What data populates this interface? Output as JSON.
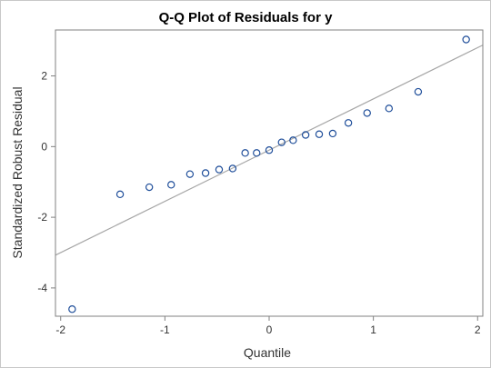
{
  "chart_data": {
    "type": "scatter",
    "title": "Q-Q Plot of Residuals for y",
    "xlabel": "Quantile",
    "ylabel": "Standardized Robust Residual",
    "xlim": [
      -2.05,
      2.05
    ],
    "ylim": [
      -4.8,
      3.3
    ],
    "x_ticks": [
      -2,
      -1,
      0,
      1,
      2
    ],
    "y_ticks": [
      -4,
      -2,
      0,
      2
    ],
    "grid": false,
    "legend": "none",
    "series": [
      {
        "x": [
          -1.89,
          -1.43,
          -1.15,
          -0.94,
          -0.76,
          -0.61,
          -0.48,
          -0.35,
          -0.23,
          -0.12,
          0.0,
          0.12,
          0.23,
          0.35,
          0.48,
          0.61,
          0.76,
          0.94,
          1.15,
          1.43,
          1.89
        ],
        "y": [
          -4.6,
          -1.35,
          -1.15,
          -1.08,
          -0.78,
          -0.75,
          -0.65,
          -0.62,
          -0.18,
          -0.18,
          -0.1,
          0.12,
          0.18,
          0.33,
          0.35,
          0.37,
          0.67,
          0.95,
          1.08,
          1.55,
          3.03
        ]
      }
    ],
    "reference_line": {
      "slope": 1.45,
      "intercept": -0.1
    },
    "colors": {
      "marker": "#1f4e9a",
      "line": "#a6a6a6",
      "axis": "#808080"
    }
  }
}
